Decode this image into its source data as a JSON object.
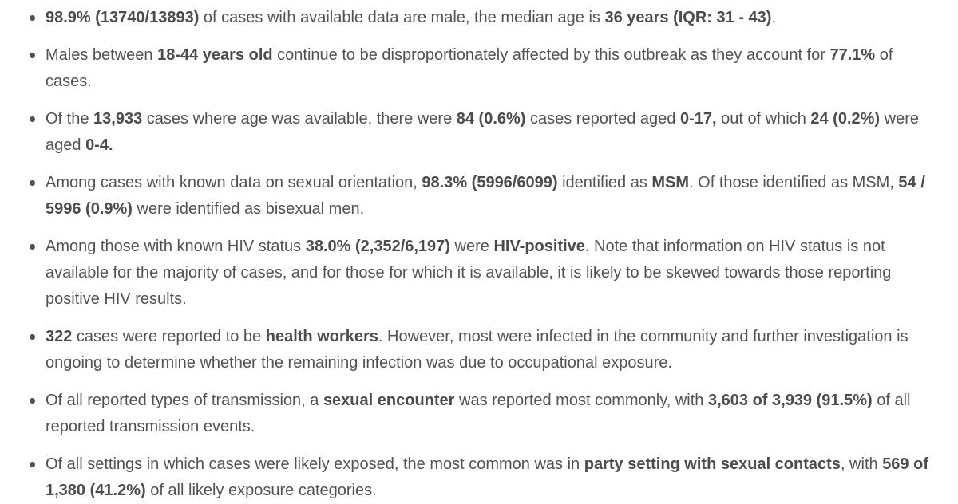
{
  "page": {
    "background": "#ffffff",
    "text_color": "#525252",
    "bold_text_color": "#4c4c4c",
    "bullet_color": "#525252"
  },
  "bullets": [
    {
      "segments": [
        {
          "text": "98.9% (13740/13893)",
          "bold": true
        },
        {
          "text": " of cases with available data are male, the median age is ",
          "bold": false
        },
        {
          "text": "36 years (IQR: 31 - 43)",
          "bold": true
        },
        {
          "text": ".",
          "bold": false
        }
      ]
    },
    {
      "segments": [
        {
          "text": "Males between ",
          "bold": false
        },
        {
          "text": "18-44 years old",
          "bold": true
        },
        {
          "text": " continue to be disproportionately affected by this outbreak as they account for ",
          "bold": false
        },
        {
          "text": "77.1%",
          "bold": true
        },
        {
          "text": " of cases.",
          "bold": false
        }
      ]
    },
    {
      "segments": [
        {
          "text": "Of the ",
          "bold": false
        },
        {
          "text": "13,933",
          "bold": true
        },
        {
          "text": " cases where age was available, there were ",
          "bold": false
        },
        {
          "text": "84 (0.6%)",
          "bold": true
        },
        {
          "text": " cases reported aged ",
          "bold": false
        },
        {
          "text": "0-17,",
          "bold": true
        },
        {
          "text": " out of which ",
          "bold": false
        },
        {
          "text": "24 (0.2%)",
          "bold": true
        },
        {
          "text": " were aged ",
          "bold": false
        },
        {
          "text": "0-4.",
          "bold": true
        }
      ]
    },
    {
      "segments": [
        {
          "text": "Among cases with known data on sexual orientation, ",
          "bold": false
        },
        {
          "text": "98.3% (5996/6099)",
          "bold": true
        },
        {
          "text": " identified as ",
          "bold": false
        },
        {
          "text": "MSM",
          "bold": true
        },
        {
          "text": ". Of those identified as MSM, ",
          "bold": false
        },
        {
          "text": "54 / 5996 (0.9%)",
          "bold": true
        },
        {
          "text": " were identified as bisexual men.",
          "bold": false
        }
      ]
    },
    {
      "segments": [
        {
          "text": "Among those with known HIV status ",
          "bold": false
        },
        {
          "text": "38.0% (2,352/6,197)",
          "bold": true
        },
        {
          "text": " were ",
          "bold": false
        },
        {
          "text": "HIV-positive",
          "bold": true
        },
        {
          "text": ". Note that information on HIV status is not available for the majority of cases, and for those for which it is available, it is likely to be skewed towards those reporting positive HIV results.",
          "bold": false
        }
      ]
    },
    {
      "segments": [
        {
          "text": "322",
          "bold": true
        },
        {
          "text": " cases were reported to be ",
          "bold": false
        },
        {
          "text": "health workers",
          "bold": true
        },
        {
          "text": ". However, most were infected in the community and further investigation is ongoing to determine whether the remaining infection was due to occupational exposure.",
          "bold": false
        }
      ]
    },
    {
      "segments": [
        {
          "text": "Of all reported types of transmission, a ",
          "bold": false
        },
        {
          "text": "sexual encounter",
          "bold": true
        },
        {
          "text": " was reported most commonly, with ",
          "bold": false
        },
        {
          "text": "3,603 of 3,939 (91.5%)",
          "bold": true
        },
        {
          "text": " of all reported transmission events.",
          "bold": false
        }
      ]
    },
    {
      "segments": [
        {
          "text": "Of all settings in which cases were likely exposed, the most common was in ",
          "bold": false
        },
        {
          "text": "party setting with sexual contacts",
          "bold": true
        },
        {
          "text": ", with ",
          "bold": false
        },
        {
          "text": "569 of 1,380 (41.2%)",
          "bold": true
        },
        {
          "text": " of all likely exposure categories.",
          "bold": false
        }
      ]
    }
  ]
}
